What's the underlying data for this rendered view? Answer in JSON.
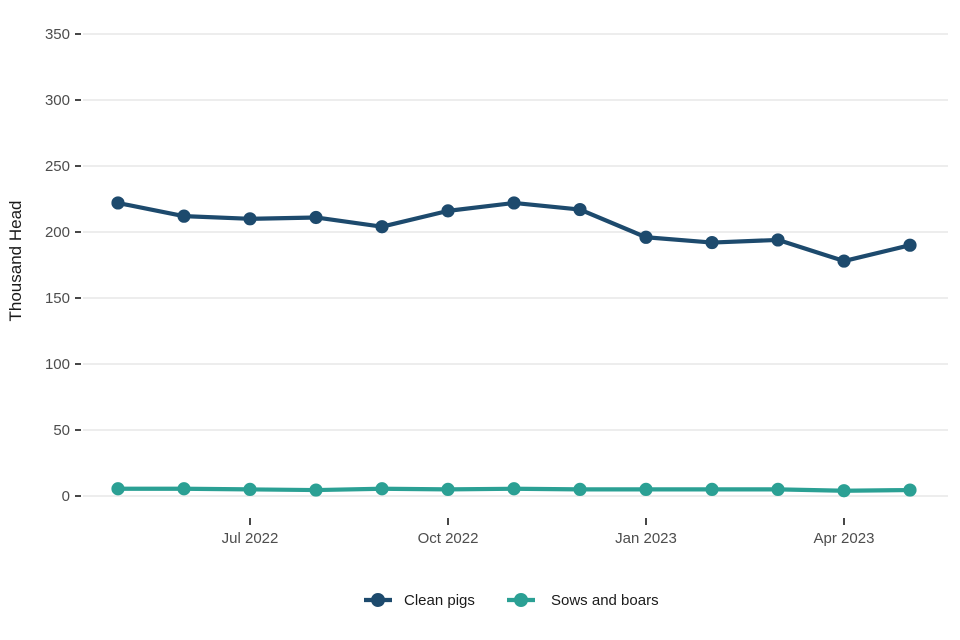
{
  "chart_data": {
    "type": "line",
    "title": "",
    "ylabel": "Thousand Head",
    "xlabel": "",
    "x": [
      "May 2022",
      "Jun 2022",
      "Jul 2022",
      "Aug 2022",
      "Sep 2022",
      "Oct 2022",
      "Nov 2022",
      "Dec 2022",
      "Jan 2023",
      "Feb 2023",
      "Mar 2023",
      "Apr 2023",
      "May 2023"
    ],
    "x_tick_labels": [
      "Jul 2022",
      "Oct 2022",
      "Jan 2023",
      "Apr 2023"
    ],
    "x_tick_indices": [
      2,
      5,
      8,
      11
    ],
    "y_ticks": [
      0,
      50,
      100,
      150,
      200,
      250,
      300,
      350
    ],
    "ylim": [
      -17,
      367
    ],
    "grid": "horizontal-only",
    "legend_position": "bottom-center",
    "series": [
      {
        "name": "Clean pigs",
        "color": "#1d4a6d",
        "values": [
          222,
          212,
          210,
          211,
          204,
          216,
          222,
          217,
          196,
          192,
          194,
          178,
          190
        ]
      },
      {
        "name": "Sows and boars",
        "color": "#2ba094",
        "values": [
          5.5,
          5.5,
          5,
          4.5,
          5.5,
          5,
          5.5,
          5,
          5,
          5,
          5,
          4,
          4.5
        ]
      }
    ]
  },
  "style": {
    "background_color": "#ffffff",
    "gridline_color": "#e7e7e7",
    "tick_mark_color": "#333333",
    "tick_label_color": "#4d4d4d",
    "axis_title_color": "#1a1a1a",
    "legend_text_color": "#1a1a1a"
  }
}
